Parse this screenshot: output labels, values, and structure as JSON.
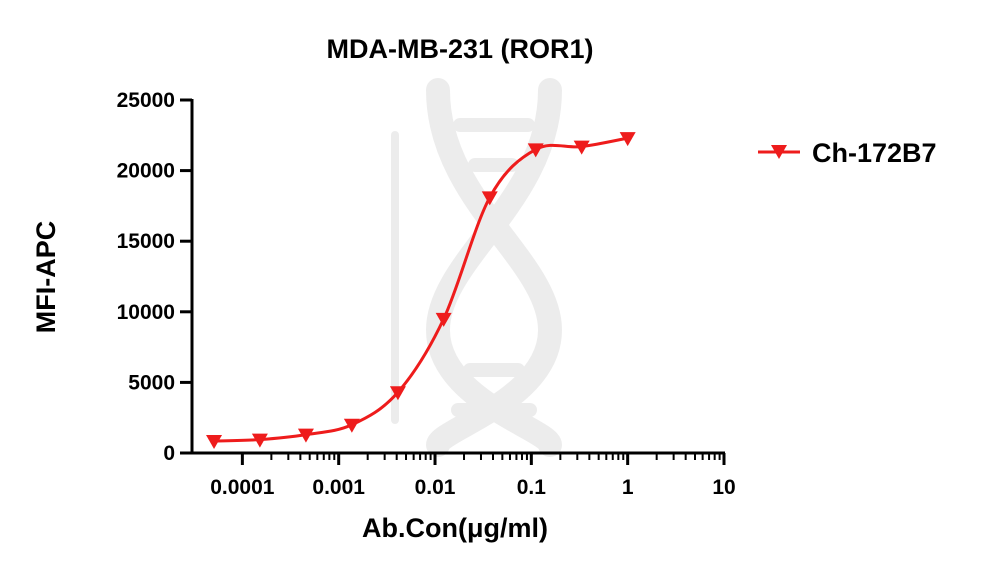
{
  "chart_data": {
    "type": "scatter",
    "title": "MDA-MB-231 (ROR1)",
    "xlabel": "Ab.Con(μg/ml)",
    "ylabel": "MFI-APC",
    "xscale": "log",
    "xlim": [
      3e-05,
      10
    ],
    "ylim": [
      0,
      25000
    ],
    "xticks": [
      0.0001,
      0.001,
      0.01,
      0.1,
      1,
      10
    ],
    "xtick_labels": [
      "0.0001",
      "0.001",
      "0.01",
      "0.1",
      "1",
      "10"
    ],
    "yticks": [
      0,
      5000,
      10000,
      15000,
      20000,
      25000
    ],
    "ytick_labels": [
      "0",
      "5000",
      "10000",
      "15000",
      "20000",
      "25000"
    ],
    "legend_position": "right",
    "grid": false,
    "series": [
      {
        "name": "Ch-172B7",
        "color": "#ee1c1c",
        "marker": "triangle-down",
        "fit": "4PL sigmoidal curve",
        "x": [
          5.08e-05,
          0.000152,
          0.000457,
          0.00137,
          0.00412,
          0.0123,
          0.037,
          0.111,
          0.333,
          1
        ],
        "y": [
          850,
          950,
          1300,
          2000,
          4300,
          9500,
          18100,
          21500,
          21700,
          22300
        ]
      }
    ]
  }
}
